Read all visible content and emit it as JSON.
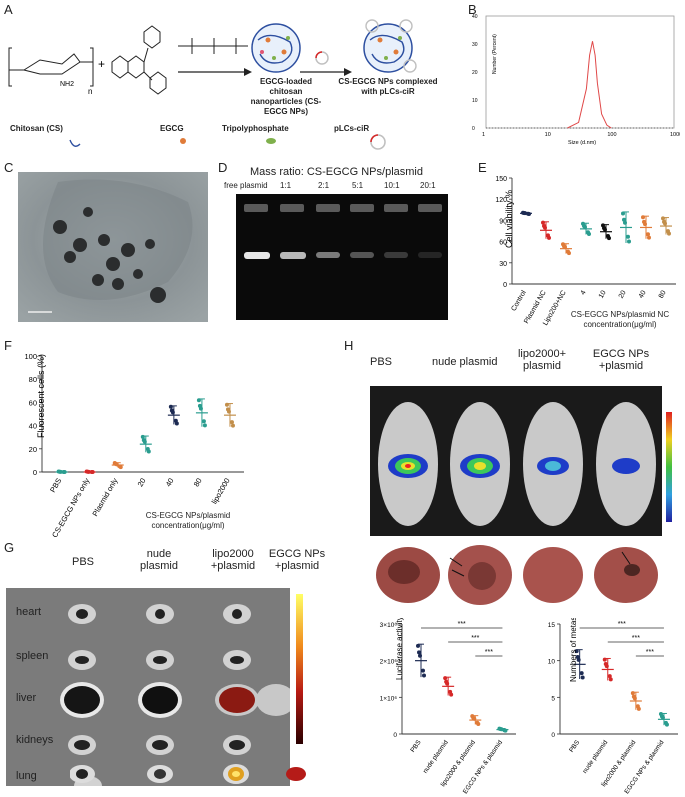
{
  "panels": {
    "A": "A",
    "B": "B",
    "C": "C",
    "D": "D",
    "E": "E",
    "F": "F",
    "G": "G",
    "H": "H"
  },
  "A": {
    "n": "n",
    "nh2": "NH2",
    "plus": "+",
    "l_nps": "EGCG-loaded chitosan nanoparticles (CS-EGCG NPs)",
    "l_complex": "CS-EGCG NPs complexed with pLCs-ciR",
    "chitosan": "Chitosan (CS)",
    "egcg": "EGCG",
    "tpp": "Tripolyphosphate",
    "plasmid": "pLCs-ciR"
  },
  "B": {
    "ylabel": "Number (Percent)",
    "xlabel": "Size (d.nm)",
    "yticks": [
      "0",
      "10",
      "20",
      "30",
      "40"
    ],
    "xticks": [
      "1",
      "10",
      "100",
      "1000"
    ],
    "chart_data": {
      "type": "line",
      "x": [
        20,
        30,
        40,
        45,
        50,
        55,
        60,
        70,
        85,
        100
      ],
      "y": [
        0,
        2,
        14,
        26,
        31,
        26,
        16,
        5,
        1,
        0
      ],
      "xlim": [
        1,
        1000
      ],
      "ylim": [
        0,
        40
      ],
      "xscale": "log"
    }
  },
  "D": {
    "title": "Mass ratio: CS-EGCG NPs/plasmid",
    "lanes": [
      "free plasmid",
      "1:1",
      "2:1",
      "5:1",
      "10:1",
      "20:1"
    ]
  },
  "E": {
    "ylabel": "Cell viability %",
    "yticks": [
      "0",
      "30",
      "60",
      "90",
      "120",
      "150"
    ],
    "categories": [
      "Control",
      "Plasmid NC",
      "Lipo200+NC",
      "4",
      "10",
      "20",
      "40",
      "80"
    ],
    "xlabel": "CS-EGCG NPs/plasmid NC concentration(μg/ml)",
    "chart_data": {
      "type": "scatter",
      "categories": [
        "Control",
        "Plasmid NC",
        "Lipo200+NC",
        "4",
        "10",
        "20",
        "40",
        "80"
      ],
      "means": [
        100,
        76,
        50,
        78,
        74,
        80,
        80,
        82
      ],
      "sd": [
        1,
        12,
        7,
        8,
        10,
        22,
        16,
        12
      ],
      "ylim": [
        0,
        150
      ]
    }
  },
  "F": {
    "ylabel": "Fluorescent cells (%)",
    "yticks": [
      "0",
      "20",
      "40",
      "60",
      "80",
      "100"
    ],
    "categories": [
      "PBS",
      "CS-EGCG NPs only",
      "Plasmid only",
      "20",
      "40",
      "80",
      "lipo2000"
    ],
    "xlabel": "CS-EGCG NPs/plasmid concentration(μg/ml)",
    "chart_data": {
      "type": "scatter",
      "categories": [
        "PBS",
        "CS-EGCG NPs only",
        "Plasmid only",
        "20",
        "40",
        "80",
        "lipo2000"
      ],
      "means": [
        0,
        0,
        6,
        24,
        49,
        51,
        49
      ],
      "sd": [
        0.5,
        0.5,
        2,
        7,
        8,
        12,
        10
      ],
      "ylim": [
        0,
        100
      ]
    }
  },
  "G": {
    "cols": [
      "PBS",
      "nude plasmid",
      "lipo2000 +plasmid",
      "EGCG NPs +plasmid"
    ],
    "rows": [
      "heart",
      "spleen",
      "liver",
      "kidneys",
      "lung"
    ]
  },
  "H": {
    "cols": [
      "PBS",
      "nude plasmid",
      "lipo2000+ plasmid",
      "EGCG NPs +plasmid"
    ],
    "luc": {
      "ylabel": "Luciferase activity (photons/s)",
      "yticks": [
        "0",
        "1×10⁶",
        "2×10⁶",
        "3×10⁶"
      ],
      "categories": [
        "PBS",
        "nude plasmid",
        "lipo2000 & plasmid",
        "EGCG NPs & plasmid"
      ],
      "sig": [
        "***",
        "***",
        "***"
      ],
      "chart_data": {
        "type": "scatter",
        "categories": [
          "PBS",
          "nude plasmid",
          "lipo2000 & plasmid",
          "EGCG NPs & plasmid"
        ],
        "means": [
          2000000,
          1300000,
          380000,
          120000
        ],
        "sd": [
          450000,
          250000,
          120000,
          30000
        ],
        "ylim": [
          0,
          3000000
        ]
      }
    },
    "nod": {
      "ylabel": "Numbers of metastasis nodules in lung",
      "yticks": [
        "0",
        "5",
        "10",
        "15"
      ],
      "categories": [
        "PBS",
        "nude plasmid",
        "lipo2000 & plasmid",
        "EGCG NPs & plasmid"
      ],
      "sig": [
        "***",
        "***",
        "***"
      ],
      "chart_data": {
        "type": "scatter",
        "categories": [
          "PBS",
          "nude plasmid",
          "lipo2000 & plasmid",
          "EGCG NPs & plasmid"
        ],
        "means": [
          9.5,
          8.8,
          4.5,
          2
        ],
        "sd": [
          2,
          1.5,
          1.2,
          0.8
        ],
        "ylim": [
          0,
          15
        ]
      }
    }
  },
  "colors": {
    "teal": "#2a9d8f",
    "navy": "#1d2b53",
    "red": "#d62828",
    "orange": "#e07b39",
    "tan": "#c28f4b",
    "dark": "#111111",
    "pink": "#e05575"
  }
}
